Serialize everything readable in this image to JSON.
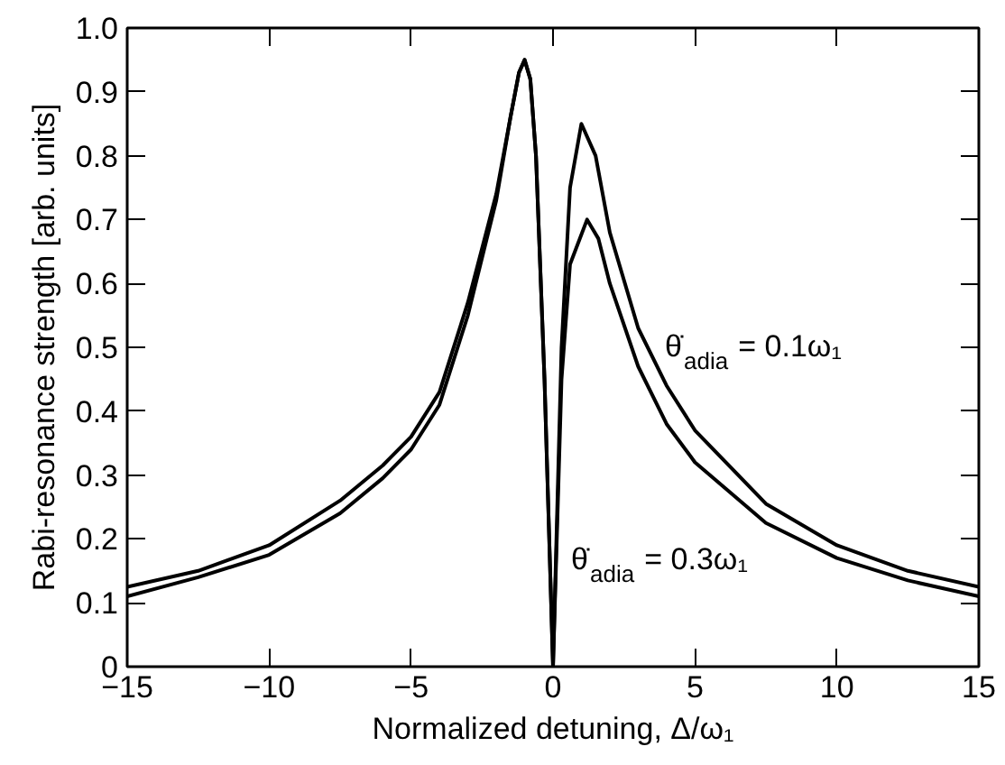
{
  "chart_data": {
    "type": "line",
    "xlabel": "Normalized detuning, Δ/ω₁",
    "ylabel": "Rabi-resonance strength [arb. units]",
    "xlim": [
      -15,
      15
    ],
    "ylim": [
      0,
      1.0
    ],
    "xticks": [
      {
        "value": -15,
        "label": "−15"
      },
      {
        "value": -10,
        "label": "−10"
      },
      {
        "value": -5,
        "label": "−5"
      },
      0,
      5,
      10,
      15
    ],
    "yticks": [
      0,
      0.1,
      0.2,
      0.3,
      0.4,
      0.5,
      0.6,
      0.7,
      0.8,
      0.9,
      {
        "value": 1.0,
        "label": "1.0"
      }
    ],
    "grid": false,
    "line_style": "solid",
    "series": [
      {
        "color": "#000000",
        "x": [
          -15,
          -12.5,
          -10,
          -7.5,
          -6,
          -5,
          -4,
          -3,
          -2,
          -1.5,
          -1.2,
          -1,
          -0.8,
          -0.6,
          -0.3,
          0,
          0.3,
          0.6,
          1,
          1.5,
          2,
          3,
          4,
          5,
          7.5,
          10,
          12.5,
          15
        ],
        "values": [
          0.125,
          0.15,
          0.19,
          0.26,
          0.315,
          0.36,
          0.43,
          0.57,
          0.74,
          0.86,
          0.93,
          0.95,
          0.92,
          0.8,
          0.45,
          0,
          0.5,
          0.75,
          0.85,
          0.8,
          0.68,
          0.53,
          0.44,
          0.37,
          0.255,
          0.19,
          0.15,
          0.125
        ]
      },
      {
        "color": "#000000",
        "x": [
          -15,
          -12.5,
          -10,
          -7.5,
          -6,
          -5,
          -4,
          -3,
          -2,
          -1.5,
          -1.2,
          -1,
          -0.8,
          -0.6,
          -0.3,
          0,
          0.3,
          0.6,
          1.2,
          1.6,
          2,
          3,
          4,
          5,
          7.5,
          10,
          12.5,
          15
        ],
        "values": [
          0.11,
          0.14,
          0.175,
          0.24,
          0.295,
          0.34,
          0.41,
          0.55,
          0.73,
          0.86,
          0.93,
          0.95,
          0.92,
          0.8,
          0.45,
          0,
          0.45,
          0.63,
          0.7,
          0.67,
          0.6,
          0.47,
          0.38,
          0.32,
          0.225,
          0.17,
          0.135,
          0.11
        ]
      }
    ],
    "annotations": [
      "θ̇$_{adia}$ = 0.1ω₁",
      "θ̇$_{adia}$ = 0.3ω₁"
    ]
  }
}
